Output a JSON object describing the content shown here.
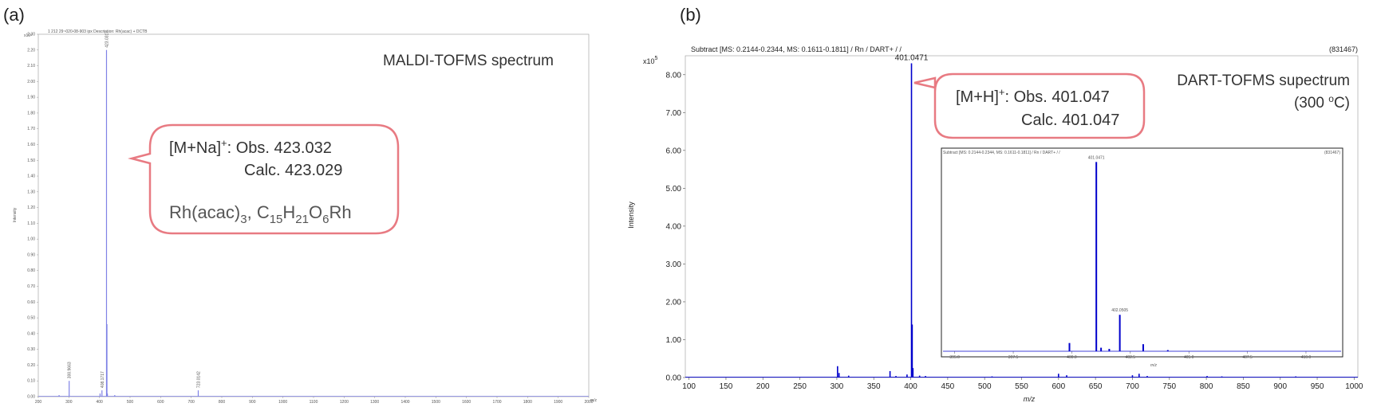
{
  "panel_a": {
    "label": "(a)",
    "header": "1 212 29~020-08-903 ipx   Description: Rh(acac) + DCTB",
    "exp_label": "x10³",
    "ylabel": "Intensity",
    "xunit": "m/z",
    "title": "MALDI-TOFMS spectrum",
    "callout": {
      "line1_main": "[M+Na]",
      "line1_sup": "+",
      "line1_rest": ": Obs. 423.032",
      "line2": "Calc. 423.029",
      "line3_parts": [
        "Rh(acac)",
        "3",
        ", C",
        "15",
        "H",
        "21",
        "O",
        "6",
        "Rh"
      ]
    },
    "color_line": "#7f82e6",
    "color_callout": "#e87a82"
  },
  "panel_b": {
    "label": "(b)",
    "header_left": "Subtract [MS: 0.2144-0.2344, MS: 0.1611-0.1811] / Rn / DART+ /  /",
    "header_right": "(831467)",
    "exp_label": "x10",
    "exp_sup": "5",
    "ylabel": "Intensity",
    "xlabel": "m/z",
    "title_line1": "DART-TOFMS supectrum",
    "title_line2_a": "(300 ",
    "title_line2_sup": "o",
    "title_line2_b": "C)",
    "callout": {
      "line1_main": "[M+H]",
      "line1_sup": "+",
      "line1_rest": ": Obs. 401.047",
      "line2": "Calc. 401.047"
    },
    "inset": {
      "header_left": "Subtract [MS: 0.2144-0.2344, MS: 0.1611-0.1811] / Rn / DART+ /  /",
      "header_right": "(831467)",
      "xlabel": "m/z"
    },
    "color_line": "#0000cc",
    "color_callout": "#e87a82"
  },
  "chart_data": [
    {
      "type": "line",
      "panel": "a",
      "title": "MALDI-TOFMS spectrum",
      "ylabel": "Intensity",
      "xlabel": "m/z",
      "xlim": [
        200,
        2000
      ],
      "ylim": [
        0,
        2.3
      ],
      "x_ticks": [
        200,
        300,
        400,
        500,
        600,
        700,
        800,
        900,
        1000,
        1100,
        1200,
        1300,
        1400,
        1500,
        1600,
        1700,
        1800,
        1900,
        2000
      ],
      "y_ticks": [
        0.0,
        0.1,
        0.2,
        0.3,
        0.4,
        0.5,
        0.6,
        0.7,
        0.8,
        0.9,
        1.0,
        1.1,
        1.2,
        1.3,
        1.4,
        1.5,
        1.6,
        1.7,
        1.8,
        1.9,
        2.0,
        2.1,
        2.2,
        2.3
      ],
      "peaks": [
        {
          "x": 268,
          "y": 0.01
        },
        {
          "x": 300.9663,
          "y": 0.1,
          "label": "300.9663"
        },
        {
          "x": 402,
          "y": 0.02
        },
        {
          "x": 408.1717,
          "y": 0.04,
          "label": "408.1717"
        },
        {
          "x": 423.0317,
          "y": 2.2,
          "label": "423.0317"
        },
        {
          "x": 424.5,
          "y": 0.46
        },
        {
          "x": 426,
          "y": 0.02
        },
        {
          "x": 450,
          "y": 0.01
        },
        {
          "x": 723.0142,
          "y": 0.04,
          "label": "723.0142"
        }
      ]
    },
    {
      "type": "line",
      "panel": "b",
      "title": "DART-TOFMS supectrum (300 oC)",
      "ylabel": "Intensity",
      "xlabel": "m/z",
      "y_multiplier": "x10^5",
      "xlim": [
        95,
        1005
      ],
      "ylim": [
        0,
        8.5
      ],
      "x_ticks": [
        100,
        150,
        200,
        250,
        300,
        350,
        400,
        450,
        500,
        550,
        600,
        650,
        700,
        750,
        800,
        850,
        900,
        950,
        1000
      ],
      "y_ticks": [
        0.0,
        1.0,
        2.0,
        3.0,
        4.0,
        5.0,
        6.0,
        7.0,
        8.0
      ],
      "peaks": [
        {
          "x": 301,
          "y": 0.3
        },
        {
          "x": 303,
          "y": 0.12
        },
        {
          "x": 316,
          "y": 0.05
        },
        {
          "x": 372,
          "y": 0.17
        },
        {
          "x": 380,
          "y": 0.04
        },
        {
          "x": 395,
          "y": 0.08
        },
        {
          "x": 401.0471,
          "y": 8.3,
          "label": "401.0471"
        },
        {
          "x": 402,
          "y": 1.4
        },
        {
          "x": 403,
          "y": 0.25
        },
        {
          "x": 412,
          "y": 0.05
        },
        {
          "x": 420,
          "y": 0.04
        },
        {
          "x": 510,
          "y": 0.03
        },
        {
          "x": 600,
          "y": 0.1
        },
        {
          "x": 611,
          "y": 0.06
        },
        {
          "x": 700,
          "y": 0.06
        },
        {
          "x": 709,
          "y": 0.1
        },
        {
          "x": 720,
          "y": 0.04
        },
        {
          "x": 801,
          "y": 0.04
        },
        {
          "x": 821,
          "y": 0.03
        },
        {
          "x": 921,
          "y": 0.03
        }
      ],
      "inset": {
        "xlim": [
          394.5,
          411.5
        ],
        "ylim": [
          0,
          8.3
        ],
        "x_ticks": [
          395.0,
          397.5,
          400.0,
          402.5,
          405.0,
          407.5,
          410.0
        ],
        "x_tick_labels": [
          "395.0",
          "397.5",
          "400.0",
          "402.5",
          "405.0",
          "407.5",
          "410.0"
        ],
        "peaks": [
          {
            "x": 399.9,
            "y": 0.35
          },
          {
            "x": 401.0471,
            "y": 8.05,
            "label": "401.0471"
          },
          {
            "x": 401.25,
            "y": 0.15
          },
          {
            "x": 401.6,
            "y": 0.1
          },
          {
            "x": 402.0505,
            "y": 1.55,
            "label": "402.0505"
          },
          {
            "x": 403.05,
            "y": 0.3
          },
          {
            "x": 404.1,
            "y": 0.05
          }
        ]
      }
    }
  ]
}
